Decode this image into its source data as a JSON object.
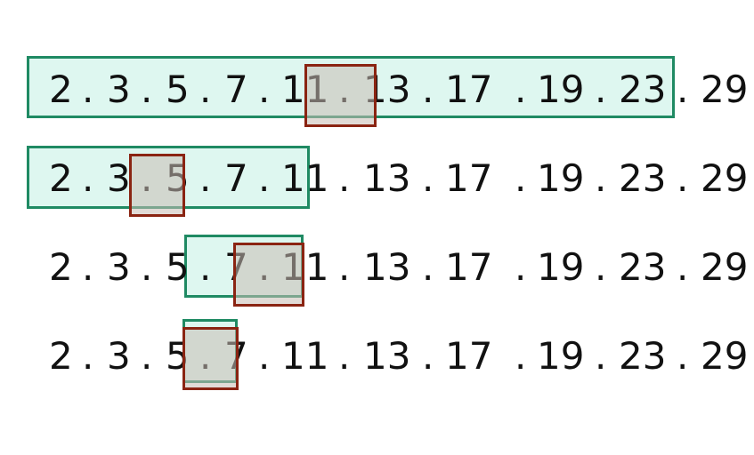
{
  "tokens": [
    "2",
    ".",
    "3",
    ".",
    "5",
    ".",
    "7",
    ".",
    "11",
    ".",
    "13",
    ".",
    "17",
    ".",
    "19",
    ".",
    "23",
    ".",
    "29"
  ],
  "rows": 4,
  "colors": {
    "range_border": "#1f8a63",
    "range_fill": "#bef0e1",
    "probe_border": "#8a2412",
    "probe_fill": "#c8beb4"
  }
}
